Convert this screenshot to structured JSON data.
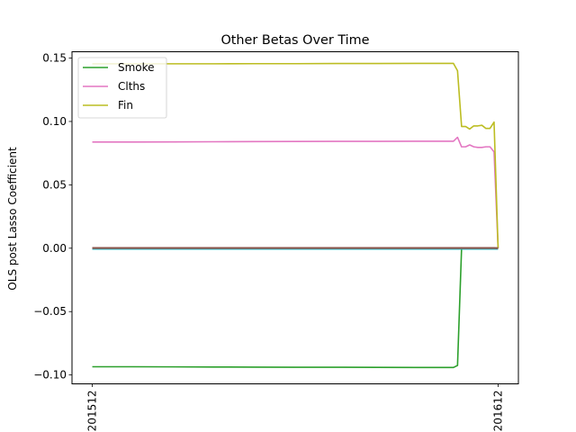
{
  "chart_data": {
    "type": "line",
    "title": "Other Betas Over Time",
    "xlabel": "",
    "ylabel": "OLS post Lasso Coefficient",
    "x_ticks": [
      "201512",
      "201612"
    ],
    "y_ticks": [
      "0.15",
      "0.10",
      "0.05",
      "0.00",
      "−0.05",
      "−0.10"
    ],
    "xlim": [
      -0.05,
      1.05
    ],
    "ylim": [
      -0.107,
      0.155
    ],
    "grid": false,
    "legend_position": "upper left",
    "x": [
      0,
      0.1,
      0.2,
      0.3,
      0.4,
      0.5,
      0.6,
      0.7,
      0.8,
      0.89,
      0.9,
      0.91,
      0.92,
      0.93,
      0.94,
      0.95,
      0.96,
      0.97,
      0.98,
      0.99,
      1.0
    ],
    "series": [
      {
        "name": "Smoke",
        "color": "#2ca02c",
        "values": [
          -0.0935,
          -0.0935,
          -0.0936,
          -0.0937,
          -0.0938,
          -0.0939,
          -0.0939,
          -0.094,
          -0.0941,
          -0.0941,
          -0.0925,
          0.0,
          0.0,
          0.0,
          0.0,
          0.0,
          0.0,
          0.0,
          0.0,
          0.0,
          0.0
        ]
      },
      {
        "name": "Clths",
        "color": "#e377c2",
        "values": [
          0.0838,
          0.0838,
          0.0839,
          0.084,
          0.0841,
          0.0842,
          0.0843,
          0.0843,
          0.0844,
          0.0844,
          0.0875,
          0.08,
          0.08,
          0.0815,
          0.08,
          0.0795,
          0.0795,
          0.08,
          0.08,
          0.076,
          0.0
        ]
      },
      {
        "name": "Fin",
        "color": "#bcbd22",
        "values": [
          0.1455,
          0.1455,
          0.1455,
          0.1455,
          0.1456,
          0.1456,
          0.1457,
          0.1457,
          0.1458,
          0.1458,
          0.14,
          0.096,
          0.096,
          0.094,
          0.0965,
          0.0965,
          0.097,
          0.0945,
          0.0945,
          0.0995,
          0.0
        ]
      },
      {
        "color": "#17becf",
        "values": [
          -0.0005,
          -0.0005,
          -0.0005,
          -0.0005,
          -0.0005,
          -0.0005,
          -0.0005,
          -0.0005,
          -0.0005,
          -0.0005,
          -0.0005,
          -0.0005,
          -0.0005,
          -0.0005,
          -0.0005,
          -0.0005,
          -0.0005,
          -0.0005,
          -0.0005,
          -0.0005,
          -0.0005
        ]
      },
      {
        "color": "#7f7f7f",
        "values": [
          0.0,
          0.0,
          0.0,
          0.0,
          0.0,
          0.0,
          0.0,
          0.0,
          0.0,
          0.0,
          0.0,
          0.0,
          0.0,
          0.0,
          0.0,
          0.0,
          0.0,
          0.0,
          0.0,
          0.0,
          0.0
        ]
      },
      {
        "color": "#8c564b",
        "values": [
          0.0002,
          0.0002,
          0.0002,
          0.0002,
          0.0002,
          0.0002,
          0.0002,
          0.0002,
          0.0002,
          0.0002,
          0.0002,
          0.0002,
          0.0002,
          0.0002,
          0.0002,
          0.0002,
          0.0002,
          0.0002,
          0.0002,
          0.0002,
          0.0
        ]
      }
    ],
    "legend": [
      "Smoke",
      "Clths",
      "Fin"
    ]
  }
}
